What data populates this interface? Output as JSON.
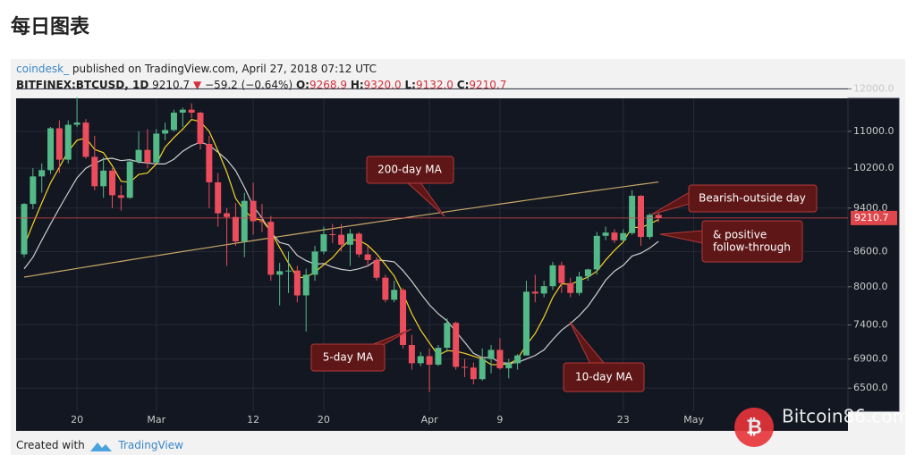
{
  "header": {
    "title": "每日图表",
    "author": "coindesk_",
    "published": "published on TradingView.com, April 27, 2018 07:12 UTC",
    "symbol": "BITFINEX:BTCUSD, 1D",
    "price": "9210.7",
    "arrow": "▼",
    "change": "−59.2 (−0.64%)",
    "o_label": "O:",
    "o": "9268.9",
    "h_label": "H:",
    "h": "9320.0",
    "l_label": "L:",
    "l": "9132.0",
    "c_label": "C:",
    "c": "9210.7"
  },
  "footer": {
    "created": "Created with",
    "brand": "TradingView"
  },
  "watermark": "Bitcoin86.com",
  "chart_data": {
    "type": "candlestick",
    "log_scale": true,
    "grid": true,
    "up_color": "#53b987",
    "down_color": "#eb4d5c",
    "categories": [
      "2018-02-14",
      "2018-02-15",
      "2018-02-16",
      "2018-02-17",
      "2018-02-18",
      "2018-02-19",
      "2018-02-20",
      "2018-02-21",
      "2018-02-22",
      "2018-02-23",
      "2018-02-24",
      "2018-02-25",
      "2018-02-26",
      "2018-02-27",
      "2018-02-28",
      "2018-03-01",
      "2018-03-02",
      "2018-03-03",
      "2018-03-04",
      "2018-03-05",
      "2018-03-06",
      "2018-03-07",
      "2018-03-08",
      "2018-03-09",
      "2018-03-10",
      "2018-03-11",
      "2018-03-12",
      "2018-03-13",
      "2018-03-14",
      "2018-03-15",
      "2018-03-16",
      "2018-03-17",
      "2018-03-18",
      "2018-03-19",
      "2018-03-20",
      "2018-03-21",
      "2018-03-22",
      "2018-03-23",
      "2018-03-24",
      "2018-03-25",
      "2018-03-26",
      "2018-03-27",
      "2018-03-28",
      "2018-03-29",
      "2018-03-30",
      "2018-03-31",
      "2018-04-01",
      "2018-04-02",
      "2018-04-03",
      "2018-04-04",
      "2018-04-05",
      "2018-04-06",
      "2018-04-07",
      "2018-04-08",
      "2018-04-09",
      "2018-04-10",
      "2018-04-11",
      "2018-04-12",
      "2018-04-13",
      "2018-04-14",
      "2018-04-15",
      "2018-04-16",
      "2018-04-17",
      "2018-04-18",
      "2018-04-19",
      "2018-04-20",
      "2018-04-21",
      "2018-04-22",
      "2018-04-23",
      "2018-04-24",
      "2018-04-25",
      "2018-04-26",
      "2018-04-27"
    ],
    "open": [
      8550,
      9480,
      10030,
      10160,
      11070,
      10380,
      11150,
      11200,
      10440,
      9830,
      10150,
      9650,
      9600,
      10340,
      10590,
      10320,
      10950,
      11030,
      11430,
      11500,
      11430,
      10720,
      9910,
      9300,
      9230,
      8780,
      9540,
      9150,
      9140,
      8200,
      8260,
      8270,
      7860,
      8200,
      8600,
      8910,
      8900,
      8720,
      8920,
      8550,
      8450,
      8150,
      7790,
      7950,
      7100,
      6840,
      6940,
      6820,
      7060,
      7430,
      6790,
      6780,
      6620,
      6900,
      7030,
      6770,
      6840,
      6950,
      7920,
      7890,
      8010,
      8360,
      8060,
      7900,
      8170,
      8290,
      8880,
      8940,
      8800,
      8930,
      9640,
      8860,
      9268.9
    ],
    "high": [
      9500,
      10200,
      10300,
      11100,
      11250,
      11250,
      11800,
      11280,
      10900,
      10430,
      10200,
      9850,
      10400,
      11000,
      11050,
      11050,
      11200,
      11500,
      11550,
      11650,
      11450,
      10900,
      10100,
      9400,
      9500,
      9700,
      9900,
      9480,
      9250,
      8400,
      8600,
      8350,
      8300,
      8700,
      9050,
      9100,
      9100,
      9000,
      8950,
      8700,
      8500,
      8200,
      8100,
      7980,
      7250,
      7000,
      7050,
      7100,
      7500,
      7450,
      6900,
      6850,
      7050,
      7100,
      7200,
      6900,
      6970,
      8100,
      8200,
      8100,
      8420,
      8420,
      8150,
      8250,
      8300,
      8950,
      9050,
      9000,
      9000,
      9750,
      9650,
      9300,
      9320
    ],
    "low": [
      8500,
      9380,
      9700,
      10080,
      10100,
      10300,
      11100,
      10400,
      9750,
      9600,
      9400,
      9350,
      9580,
      10300,
      10200,
      10300,
      10800,
      11000,
      11100,
      11300,
      10600,
      9400,
      9050,
      8350,
      8700,
      8500,
      8900,
      8950,
      8100,
      7700,
      7900,
      7750,
      7300,
      8100,
      8550,
      8750,
      8600,
      8350,
      8500,
      8350,
      8100,
      7750,
      7750,
      7050,
      6750,
      6800,
      6450,
      6800,
      7000,
      6750,
      6650,
      6550,
      6600,
      6700,
      6750,
      6630,
      6750,
      6950,
      7750,
      7830,
      7950,
      7900,
      7830,
      7860,
      8100,
      8200,
      8800,
      8750,
      8780,
      8900,
      8700,
      8820,
      9132
    ],
    "close": [
      9480,
      10030,
      10160,
      11070,
      10380,
      11150,
      11200,
      10440,
      9830,
      10150,
      9650,
      9600,
      10340,
      10590,
      10320,
      10950,
      11030,
      11430,
      11500,
      11430,
      10720,
      9910,
      9300,
      9230,
      8780,
      9540,
      9150,
      9140,
      8200,
      8260,
      8270,
      7860,
      8200,
      8600,
      8910,
      8900,
      8720,
      8920,
      8550,
      8450,
      8150,
      7790,
      7950,
      7100,
      6840,
      6940,
      6820,
      7060,
      7430,
      6790,
      6780,
      6620,
      6900,
      7030,
      6770,
      6840,
      6950,
      7920,
      7890,
      8010,
      8360,
      8060,
      7900,
      8170,
      8290,
      8880,
      8940,
      8800,
      8930,
      9640,
      8860,
      9268.9,
      9210.7
    ],
    "lines": [
      {
        "color": "#c9a868",
        "values": [
          8160,
          8184,
          8209,
          8233,
          8258,
          8282,
          8306,
          8331,
          8355,
          8380,
          8404,
          8428,
          8453,
          8477,
          8502,
          8526,
          8550,
          8575,
          8599,
          8624,
          8648,
          8672,
          8697,
          8721,
          8746,
          8770,
          8794,
          8819,
          8843,
          8868,
          8892,
          8916,
          8941,
          8965,
          8990,
          9014,
          9038,
          9063,
          9087,
          9112,
          9136,
          9160,
          9185,
          9209,
          9234,
          9258,
          9282,
          9307,
          9331,
          9356,
          9380,
          9404,
          9429,
          9453,
          9478,
          9502,
          9526,
          9551,
          9575,
          9600,
          9624,
          9648,
          9673,
          9697,
          9722,
          9746,
          9770,
          9795,
          9819,
          9844,
          9868,
          9892,
          9917
        ]
      },
      {
        "color": "#cfcfcf",
        "values": [
          8300,
          8500,
          8800,
          9100,
          9400,
          9700,
          10000,
          10200,
          10300,
          10390,
          10410,
          10360,
          10380,
          10330,
          10310,
          10290,
          10290,
          10390,
          10560,
          10680,
          10760,
          10690,
          10540,
          10380,
          10150,
          9810,
          9440,
          9210,
          8950,
          8760,
          8720,
          8530,
          8440,
          8380,
          8390,
          8330,
          8290,
          8270,
          8300,
          8350,
          8450,
          8440,
          8420,
          8270,
          8090,
          7890,
          7710,
          7570,
          7460,
          7300,
          7140,
          6980,
          6920,
          6920,
          6850,
          6840,
          6850,
          6900,
          6950,
          7030,
          7180,
          7320,
          7420,
          7540,
          7690,
          7890,
          8110,
          8260,
          8360,
          8520,
          8570,
          8660,
          8780
        ]
      },
      {
        "color": "#f5d328",
        "values": [
          8700,
          9100,
          9500,
          9900,
          10220,
          10560,
          10800,
          10850,
          10600,
          10530,
          10250,
          9930,
          9910,
          10070,
          10100,
          10290,
          10650,
          10860,
          11050,
          11270,
          11220,
          11000,
          10570,
          10120,
          9590,
          9350,
          9200,
          9170,
          8960,
          8670,
          8400,
          8150,
          8160,
          8240,
          8370,
          8490,
          8670,
          8810,
          8800,
          8710,
          8560,
          8370,
          8180,
          7890,
          7570,
          7320,
          7130,
          6950,
          7020,
          7010,
          6980,
          6940,
          6900,
          6820,
          6820,
          6830,
          6900,
          7100,
          7270,
          7520,
          7830,
          8050,
          8040,
          8100,
          8160,
          8260,
          8450,
          8620,
          8770,
          9040,
          9030,
          9100,
          9180
        ]
      }
    ],
    "ylim": [
      6200,
      11770
    ],
    "yticks": [
      {
        "value": 12000,
        "label": "12000.0"
      },
      {
        "value": 11000,
        "label": "11000.0"
      },
      {
        "value": 10200,
        "label": "10200.0"
      },
      {
        "value": 9400,
        "label": "9400.0"
      },
      {
        "value": 8600,
        "label": "8600.0"
      },
      {
        "value": 8000,
        "label": "8000.0"
      },
      {
        "value": 7400,
        "label": "7400.0"
      },
      {
        "value": 6900,
        "label": "6900.0"
      },
      {
        "value": 6500,
        "label": "6500.0"
      }
    ],
    "xticks": [
      {
        "value": "2018-02-20",
        "label": "20"
      },
      {
        "value": "2018-03-01",
        "label": "Mar"
      },
      {
        "value": "2018-03-12",
        "label": "12"
      },
      {
        "value": "2018-03-20",
        "label": "20"
      },
      {
        "value": "2018-04-01",
        "label": "Apr"
      },
      {
        "value": "2018-04-09",
        "label": "9"
      },
      {
        "value": "2018-04-23",
        "label": "23"
      },
      {
        "value": "2018-05-01",
        "label": "May"
      }
    ],
    "last_price": {
      "value": 9210.7,
      "label": "9210.7",
      "color": "#e0474c"
    },
    "annotations": [
      {
        "lines": [
          "200-day MA"
        ]
      },
      {
        "lines": [
          "Bearish-outside day"
        ]
      },
      {
        "lines": [
          "& positive",
          "follow-through"
        ]
      },
      {
        "lines": [
          "5-day MA"
        ]
      },
      {
        "lines": [
          "10-day MA"
        ]
      }
    ]
  }
}
